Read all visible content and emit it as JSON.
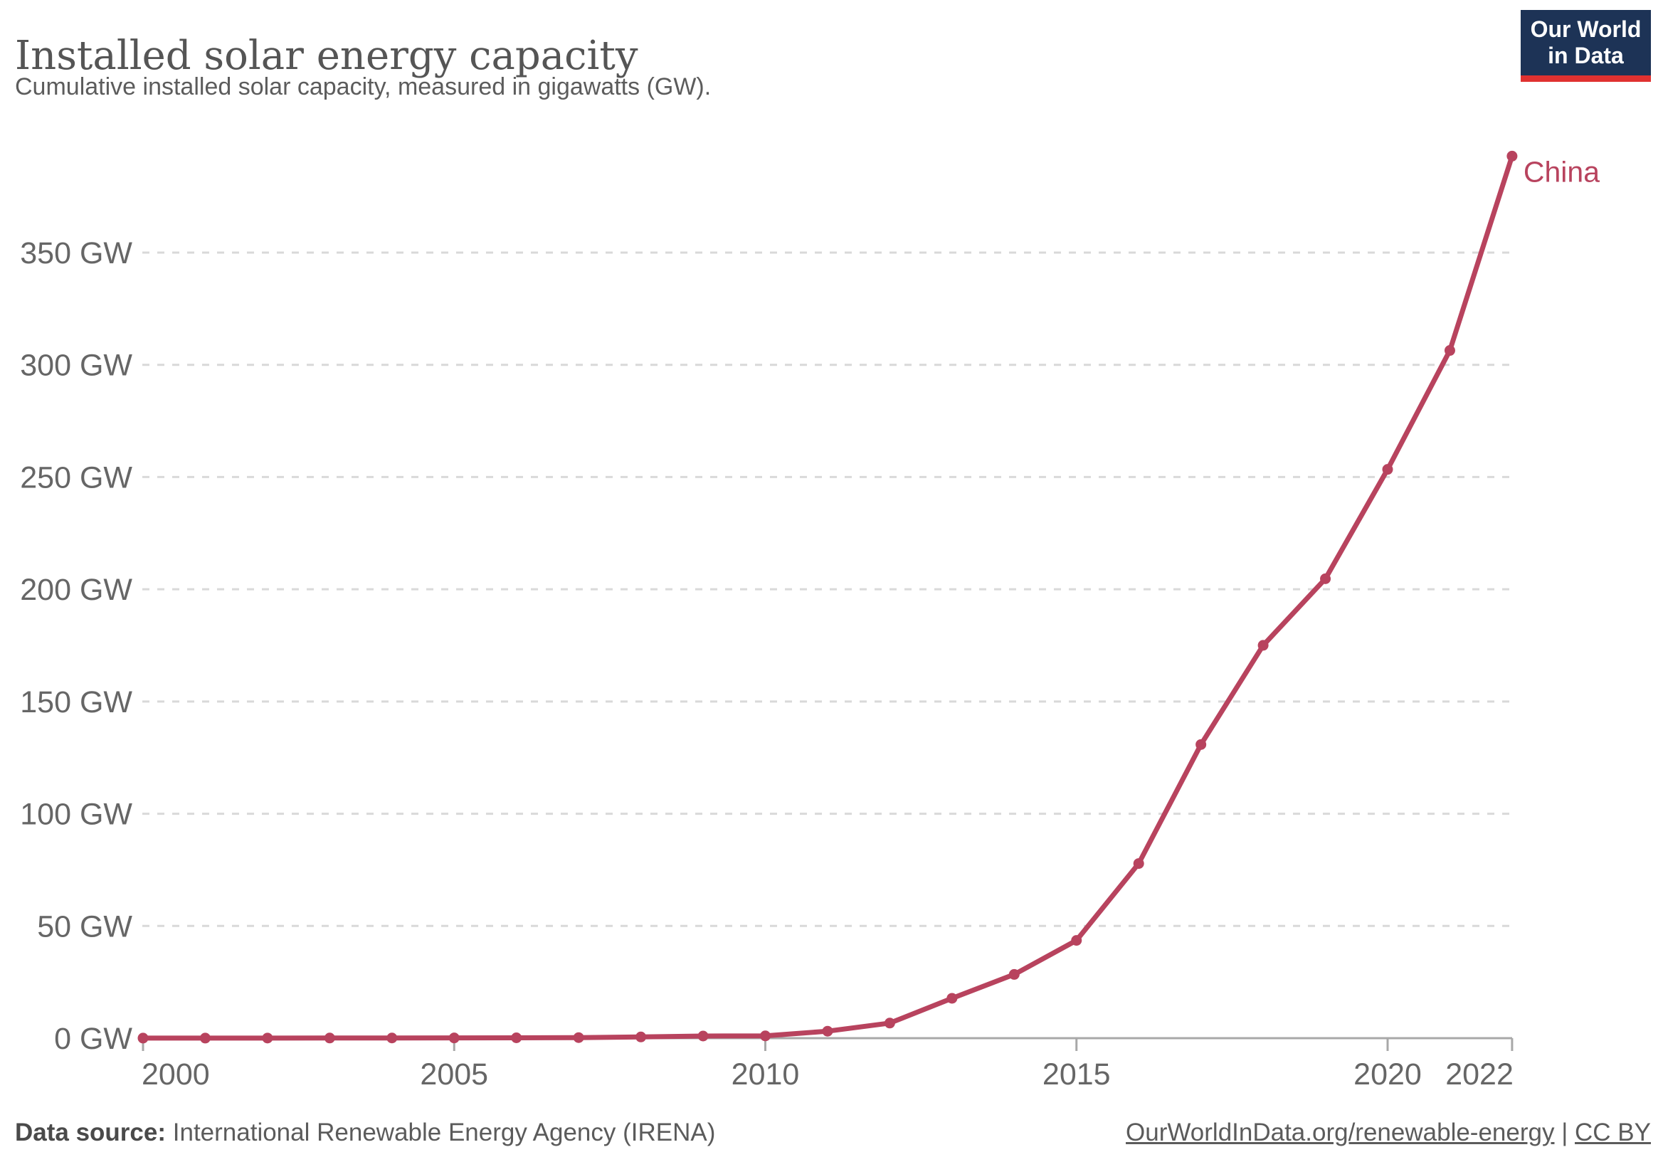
{
  "header": {
    "title": "Installed solar energy capacity",
    "subtitle": "Cumulative installed solar capacity, measured in gigawatts (GW)."
  },
  "logo": {
    "line1": "Our World",
    "line2": "in Data"
  },
  "chart_data": {
    "type": "line",
    "title": "Installed solar energy capacity",
    "unit": "GW",
    "xlabel": "",
    "ylabel": "",
    "x_ticks": [
      2000,
      2005,
      2010,
      2015,
      2020,
      2022
    ],
    "y_ticks": [
      0,
      50,
      100,
      150,
      200,
      250,
      300,
      350
    ],
    "y_tick_suffix": " GW",
    "xlim": [
      2000,
      2022
    ],
    "ylim": [
      0,
      395
    ],
    "grid": "horizontal-dashed",
    "legend_position": "end-of-line-label",
    "series": [
      {
        "name": "China",
        "color": "#b8435e",
        "years": [
          2000,
          2001,
          2002,
          2003,
          2004,
          2005,
          2006,
          2007,
          2008,
          2009,
          2010,
          2011,
          2012,
          2013,
          2014,
          2015,
          2016,
          2017,
          2018,
          2019,
          2020,
          2021,
          2022
        ],
        "values": [
          0.02,
          0.03,
          0.05,
          0.06,
          0.08,
          0.1,
          0.16,
          0.25,
          0.55,
          0.95,
          1.02,
          3.11,
          6.72,
          17.76,
          28.4,
          43.55,
          77.81,
          130.82,
          175.02,
          204.68,
          253.42,
          306.4,
          392.98
        ]
      }
    ]
  },
  "footer": {
    "source_label": "Data source:",
    "source_text": " International Renewable Energy Agency (IRENA)",
    "link1": "OurWorldInData.org/renewable-energy",
    "separator": " | ",
    "link2": "CC BY"
  },
  "colors": {
    "line": "#b8435e",
    "grid": "#d9d9d9",
    "axis": "#a8a8a8",
    "tick_label": "#666666",
    "title": "#555555",
    "subtitle": "#5c5c5c",
    "footer": "#5b5b5b",
    "logo_bg": "#1d3356",
    "logo_red": "#e03130"
  }
}
